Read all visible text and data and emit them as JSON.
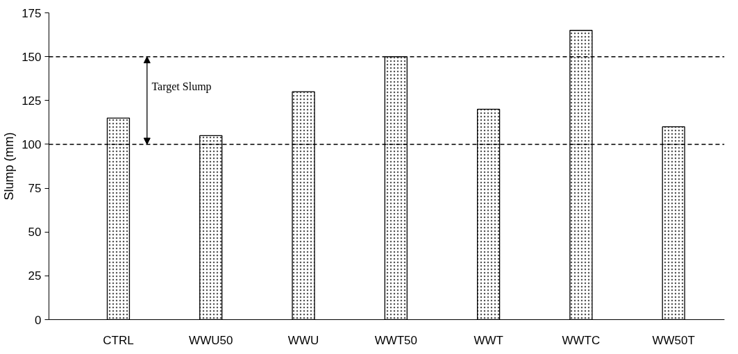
{
  "chart_data": {
    "type": "bar",
    "ylabel": "Slump (mm)",
    "categories": [
      "CTRL",
      "WWU50",
      "WWU",
      "WWT50",
      "WWT",
      "WWTC",
      "WW50T"
    ],
    "values": [
      115,
      105,
      130,
      150,
      120,
      165,
      110
    ],
    "color": "#ffffff",
    "ylim": [
      0,
      175
    ],
    "yticks": [
      0,
      25,
      50,
      75,
      100,
      125,
      150,
      175
    ],
    "grid": false,
    "ref_lines": [
      {
        "axis": "y",
        "value": 100,
        "label": null,
        "color": "#000000",
        "line_style": "dashed"
      },
      {
        "axis": "y",
        "value": 150,
        "label": null,
        "color": "#000000",
        "line_style": "dashed"
      }
    ],
    "annotations": [
      "Target Slump"
    ]
  }
}
